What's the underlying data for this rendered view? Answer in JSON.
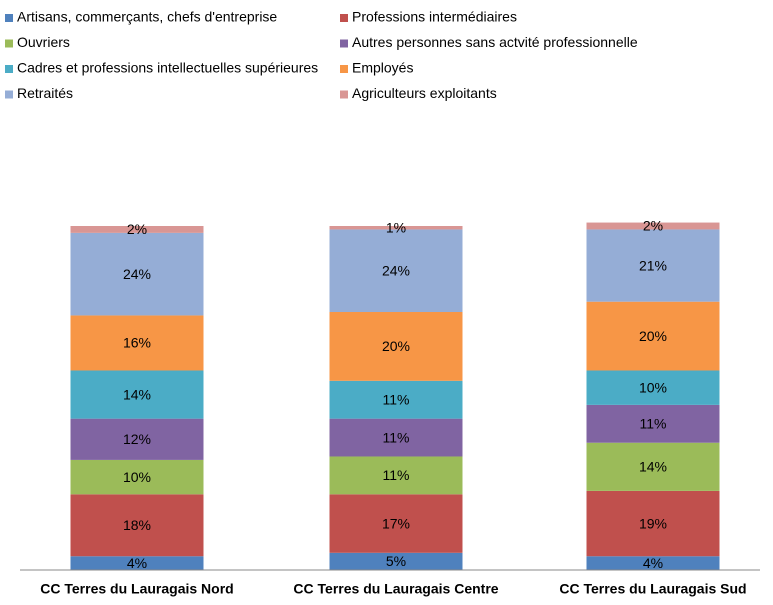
{
  "chart_data": {
    "type": "stacked_bar",
    "categories": [
      "CC Terres du Lauragais Nord",
      "CC Terres du Lauragais Centre",
      "CC Terres du Lauragais Sud"
    ],
    "series": [
      {
        "name": "Artisans, commerçants, chefs d'entreprise",
        "color": "#4f81bd",
        "values": [
          4,
          5,
          4
        ],
        "value_labels": [
          "4%",
          "5%",
          "4%"
        ]
      },
      {
        "name": "Professions intermédiaires",
        "color": "#c0504d",
        "values": [
          18,
          17,
          19
        ],
        "value_labels": [
          "18%",
          "17%",
          "19%"
        ]
      },
      {
        "name": "Ouvriers",
        "color": "#9bbb59",
        "values": [
          10,
          11,
          14
        ],
        "value_labels": [
          "10%",
          "11%",
          "14%"
        ]
      },
      {
        "name": "Autres personnes sans actvité professionnelle",
        "color": "#8064a2",
        "values": [
          12,
          11,
          11
        ],
        "value_labels": [
          "12%",
          "11%",
          "11%"
        ]
      },
      {
        "name": "Cadres et professions intellectuelles supérieures",
        "color": "#4bacc6",
        "values": [
          14,
          11,
          10
        ],
        "value_labels": [
          "14%",
          "11%",
          "10%"
        ]
      },
      {
        "name": "Employés",
        "color": "#f79646",
        "values": [
          16,
          20,
          20
        ],
        "value_labels": [
          "16%",
          "20%",
          "20%"
        ]
      },
      {
        "name": "Retraités",
        "color": "#95add6",
        "values": [
          24,
          24,
          21
        ],
        "value_labels": [
          "24%",
          "24%",
          "21%"
        ]
      },
      {
        "name": "Agriculteurs exploitants",
        "color": "#d99694",
        "values": [
          2,
          1,
          2
        ],
        "value_labels": [
          "2%",
          "1%",
          "2%"
        ]
      }
    ],
    "legend": "top"
  }
}
